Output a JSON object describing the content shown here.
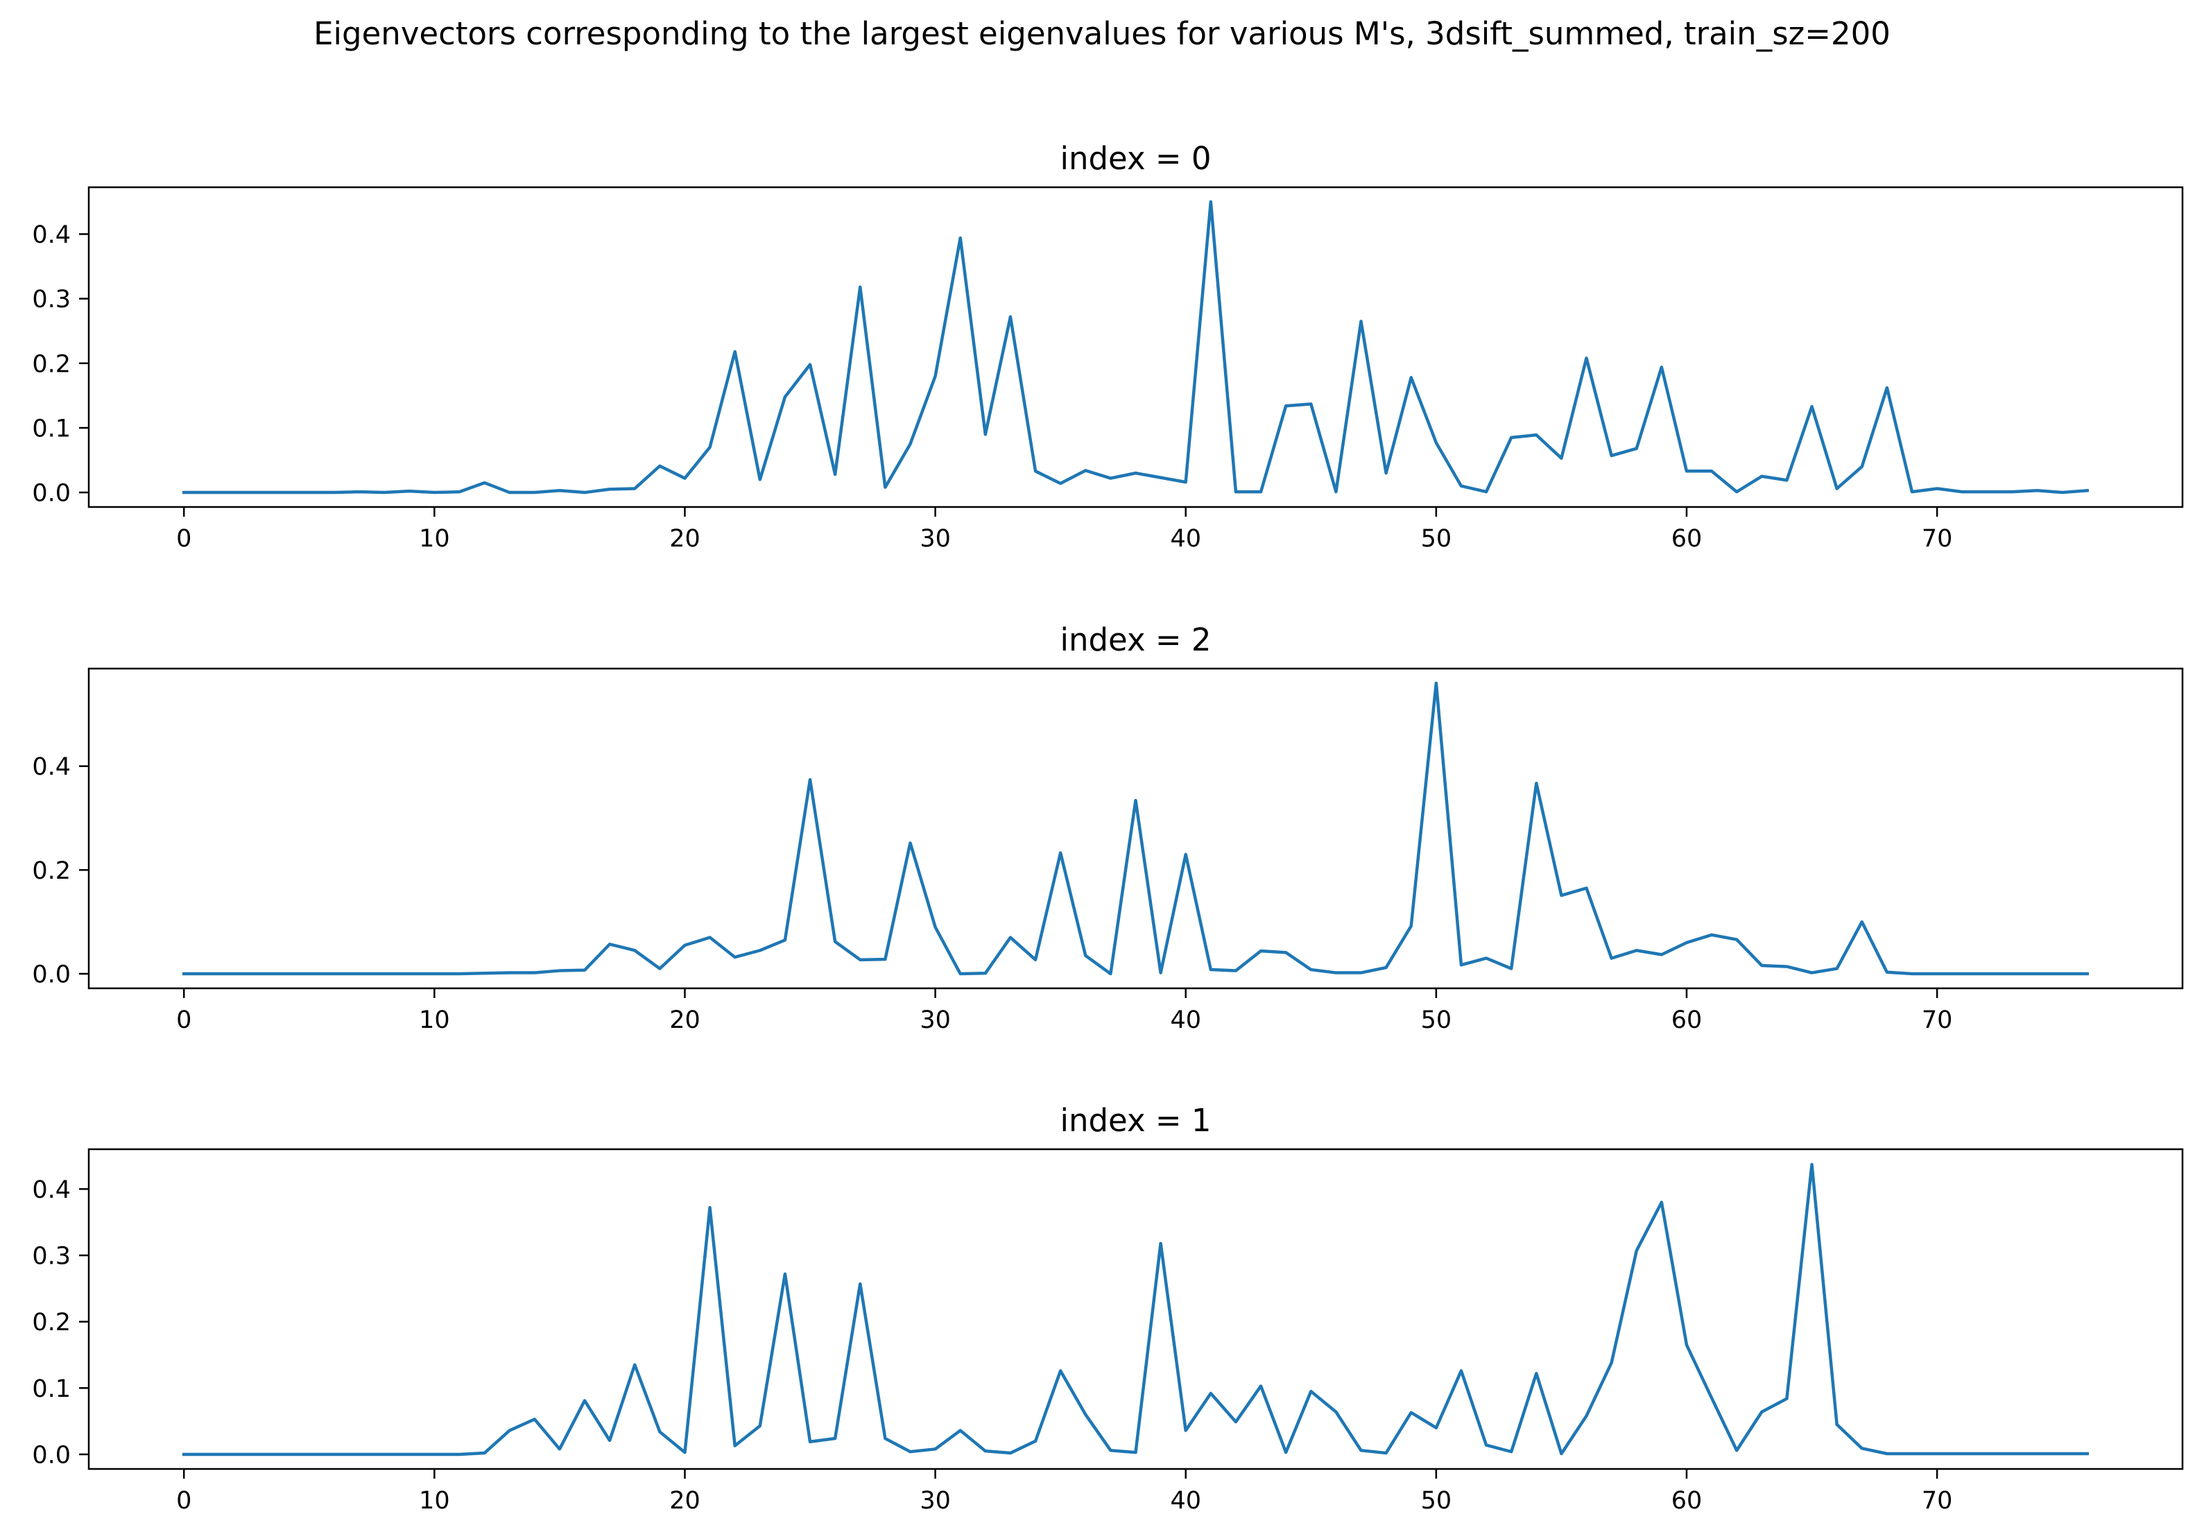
{
  "figure": {
    "suptitle": "Eigenvectors corresponding to the largest eigenvalues for various M's, 3dsift_summed, train_sz=200",
    "line_color": "#1f77b4"
  },
  "chart_data": [
    {
      "type": "line",
      "title": "index = 0",
      "xlabel": "",
      "ylabel": "",
      "xlim": [
        -3.8,
        79.8
      ],
      "ylim": [
        -0.0225,
        0.4725
      ],
      "xticks": [
        0,
        10,
        20,
        30,
        40,
        50,
        60,
        70
      ],
      "yticks": [
        0.0,
        0.1,
        0.2,
        0.3,
        0.4
      ],
      "ytick_labels": [
        "0.0",
        "0.1",
        "0.2",
        "0.3",
        "0.4"
      ],
      "grid": false,
      "series": [
        {
          "values": [
            0.0,
            0.0,
            0.0,
            0.0,
            0.0,
            0.0,
            0.0,
            0.001,
            0.0,
            0.002,
            0.0,
            0.001,
            0.015,
            0.0,
            0.0,
            0.003,
            0.0,
            0.005,
            0.006,
            0.041,
            0.022,
            0.07,
            0.218,
            0.02,
            0.148,
            0.198,
            0.028,
            0.318,
            0.008,
            0.075,
            0.18,
            0.394,
            0.09,
            0.272,
            0.033,
            0.014,
            0.034,
            0.022,
            0.03,
            0.023,
            0.016,
            0.45,
            0.001,
            0.001,
            0.134,
            0.137,
            0.001,
            0.265,
            0.03,
            0.178,
            0.077,
            0.01,
            0.001,
            0.085,
            0.089,
            0.053,
            0.208,
            0.057,
            0.068,
            0.194,
            0.033,
            0.033,
            0.001,
            0.025,
            0.019,
            0.133,
            0.006,
            0.04,
            0.162,
            0.001,
            0.006,
            0.001,
            0.001,
            0.001,
            0.003,
            0.0,
            0.003
          ]
        }
      ]
    },
    {
      "type": "line",
      "title": "index = 2",
      "xlabel": "",
      "ylabel": "",
      "xlim": [
        -3.8,
        79.8
      ],
      "ylim": [
        -0.028,
        0.588
      ],
      "xticks": [
        0,
        10,
        20,
        30,
        40,
        50,
        60,
        70
      ],
      "yticks": [
        0.0,
        0.2,
        0.4
      ],
      "ytick_labels": [
        "0.0",
        "0.2",
        "0.4"
      ],
      "grid": false,
      "series": [
        {
          "values": [
            0.0,
            0.0,
            0.0,
            0.0,
            0.0,
            0.0,
            0.0,
            0.0,
            0.0,
            0.0,
            0.0,
            0.0,
            0.001,
            0.002,
            0.002,
            0.006,
            0.007,
            0.057,
            0.045,
            0.01,
            0.055,
            0.07,
            0.032,
            0.045,
            0.065,
            0.374,
            0.062,
            0.027,
            0.028,
            0.252,
            0.09,
            0.0,
            0.001,
            0.07,
            0.027,
            0.233,
            0.035,
            0.0,
            0.334,
            0.002,
            0.23,
            0.008,
            0.006,
            0.044,
            0.041,
            0.008,
            0.002,
            0.002,
            0.012,
            0.092,
            0.56,
            0.017,
            0.03,
            0.01,
            0.367,
            0.151,
            0.165,
            0.03,
            0.045,
            0.037,
            0.06,
            0.075,
            0.066,
            0.016,
            0.014,
            0.002,
            0.01,
            0.1,
            0.003,
            0.0,
            0.0,
            0.0,
            0.0,
            0.0,
            0.0,
            0.0,
            0.0
          ]
        }
      ]
    },
    {
      "type": "line",
      "title": "index = 1",
      "xlabel": "",
      "ylabel": "",
      "xlim": [
        -3.8,
        79.8
      ],
      "ylim": [
        -0.022,
        0.46
      ],
      "xticks": [
        0,
        10,
        20,
        30,
        40,
        50,
        60,
        70
      ],
      "yticks": [
        0.0,
        0.1,
        0.2,
        0.3,
        0.4
      ],
      "ytick_labels": [
        "0.0",
        "0.1",
        "0.2",
        "0.3",
        "0.4"
      ],
      "grid": false,
      "series": [
        {
          "values": [
            0.0,
            0.0,
            0.0,
            0.0,
            0.0,
            0.0,
            0.0,
            0.0,
            0.0,
            0.0,
            0.0,
            0.0,
            0.002,
            0.036,
            0.053,
            0.008,
            0.081,
            0.021,
            0.135,
            0.034,
            0.003,
            0.372,
            0.013,
            0.043,
            0.272,
            0.019,
            0.024,
            0.257,
            0.024,
            0.004,
            0.008,
            0.036,
            0.005,
            0.002,
            0.02,
            0.126,
            0.06,
            0.006,
            0.003,
            0.318,
            0.036,
            0.092,
            0.049,
            0.103,
            0.003,
            0.095,
            0.064,
            0.006,
            0.002,
            0.063,
            0.04,
            0.126,
            0.014,
            0.004,
            0.122,
            0.001,
            0.058,
            0.138,
            0.307,
            0.38,
            0.165,
            0.085,
            0.006,
            0.064,
            0.084,
            0.437,
            0.045,
            0.009,
            0.001,
            0.001,
            0.001,
            0.001,
            0.001,
            0.001,
            0.001,
            0.001,
            0.001
          ]
        }
      ]
    }
  ]
}
